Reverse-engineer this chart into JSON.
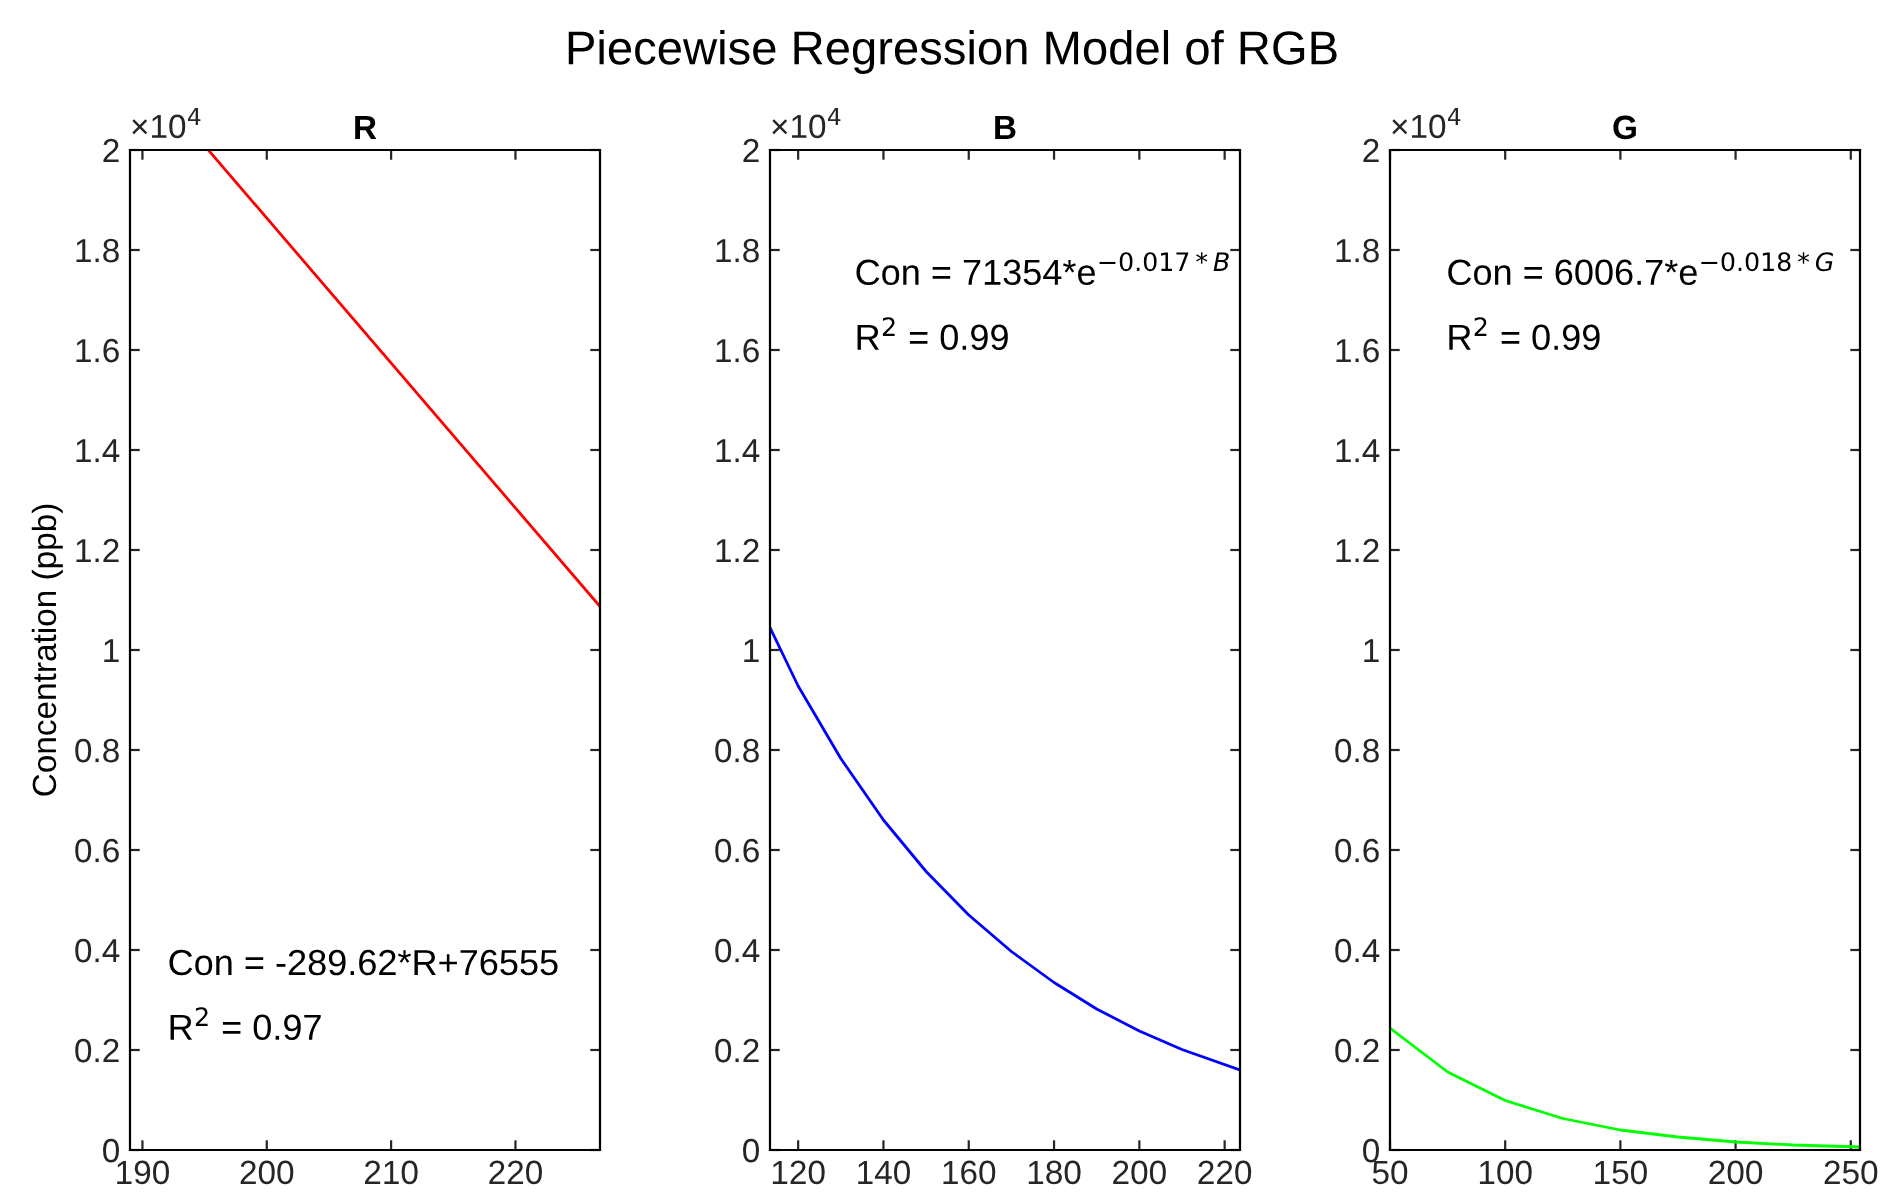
{
  "chart_data": [
    {
      "type": "line",
      "title": "R",
      "ylabel": "Concentration (ppb)",
      "annotations": [
        "Piecewise Regression Model of RGB",
        "×10$^{4}$",
        "Con = -289.62*R+76555",
        "R$^{2}$ = 0.97"
      ],
      "series": [
        {
          "color": "#ff0000",
          "x": [
            195.3,
            226.8
          ],
          "values": [
            2,
            1.087
          ]
        }
      ],
      "xlim": [
        189,
        226.8
      ],
      "xticks": [
        190,
        200,
        210,
        220
      ],
      "ylim": [
        0,
        2
      ],
      "yticks": [
        0,
        0.2,
        0.4,
        0.6,
        0.8,
        1,
        1.2,
        1.4,
        1.6,
        1.8,
        2
      ],
      "grid": false,
      "legend": false
    },
    {
      "type": "line",
      "title": "B",
      "annotations": [
        "×10$^{4}$",
        "Con = 71354*e$^{−0.017*B}$",
        "R$^{2}$ = 0.99"
      ],
      "series": [
        {
          "color": "#0000ff",
          "x": [
            113.4,
            120,
            130,
            140,
            150,
            160,
            170,
            180,
            190,
            200,
            210,
            223.6
          ],
          "values": [
            1.045,
            0.928,
            0.783,
            0.66,
            0.557,
            0.47,
            0.397,
            0.335,
            0.282,
            0.238,
            0.201,
            0.16
          ]
        }
      ],
      "xlim": [
        113.4,
        223.6
      ],
      "xticks": [
        120,
        140,
        160,
        180,
        200,
        220
      ],
      "ylim": [
        0,
        2
      ],
      "yticks": [
        0,
        0.2,
        0.4,
        0.6,
        0.8,
        1,
        1.2,
        1.4,
        1.6,
        1.8,
        2
      ],
      "grid": false,
      "legend": false
    },
    {
      "type": "line",
      "title": "G",
      "annotations": [
        "×10$^{4}$",
        "Con = 6006.7*e$^{−0.018*G}$",
        "R$^{2}$ = 0.99"
      ],
      "series": [
        {
          "color": "#00ff00",
          "x": [
            50,
            75,
            100,
            125,
            150,
            175,
            200,
            225,
            254
          ],
          "values": [
            0.244,
            0.156,
            0.099,
            0.063,
            0.04,
            0.026,
            0.016,
            0.01,
            0.006
          ]
        }
      ],
      "xlim": [
        50,
        254
      ],
      "xticks": [
        50,
        100,
        150,
        200,
        250
      ],
      "ylim": [
        0,
        2
      ],
      "yticks": [
        0,
        0.2,
        0.4,
        0.6,
        0.8,
        1,
        1.2,
        1.4,
        1.6,
        1.8,
        2
      ],
      "grid": false,
      "legend": false
    }
  ]
}
